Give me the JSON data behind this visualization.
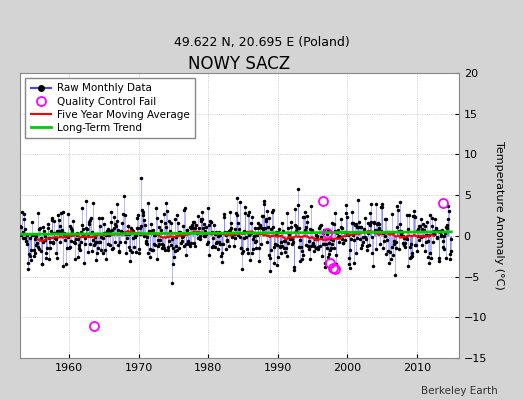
{
  "title": "NOWY SACZ",
  "subtitle": "49.622 N, 20.695 E (Poland)",
  "ylabel": "Temperature Anomaly (°C)",
  "credit": "Berkeley Earth",
  "xlim": [
    1953,
    2016
  ],
  "ylim": [
    -15,
    20
  ],
  "yticks": [
    -15,
    -10,
    -5,
    0,
    5,
    10,
    15,
    20
  ],
  "xticks": [
    1960,
    1970,
    1980,
    1990,
    2000,
    2010
  ],
  "bg_color": "#d4d4d4",
  "plot_bg_color": "#ffffff",
  "raw_line_color": "#4444ff",
  "raw_dot_color": "#000000",
  "moving_avg_color": "#ff0000",
  "trend_color": "#00cc00",
  "qc_fail_color": "#ff00ff",
  "seed": 42,
  "n_years": 62,
  "start_year": 1953,
  "qc_fail_points": [
    {
      "year": 1963.6,
      "value": -11.0
    },
    {
      "year": 1996.5,
      "value": 4.3
    },
    {
      "year": 1997.1,
      "value": 0.3
    },
    {
      "year": 1997.5,
      "value": -3.3
    },
    {
      "year": 1997.9,
      "value": -3.9
    },
    {
      "year": 1998.2,
      "value": -4.0
    },
    {
      "year": 2013.7,
      "value": 4.1
    }
  ]
}
